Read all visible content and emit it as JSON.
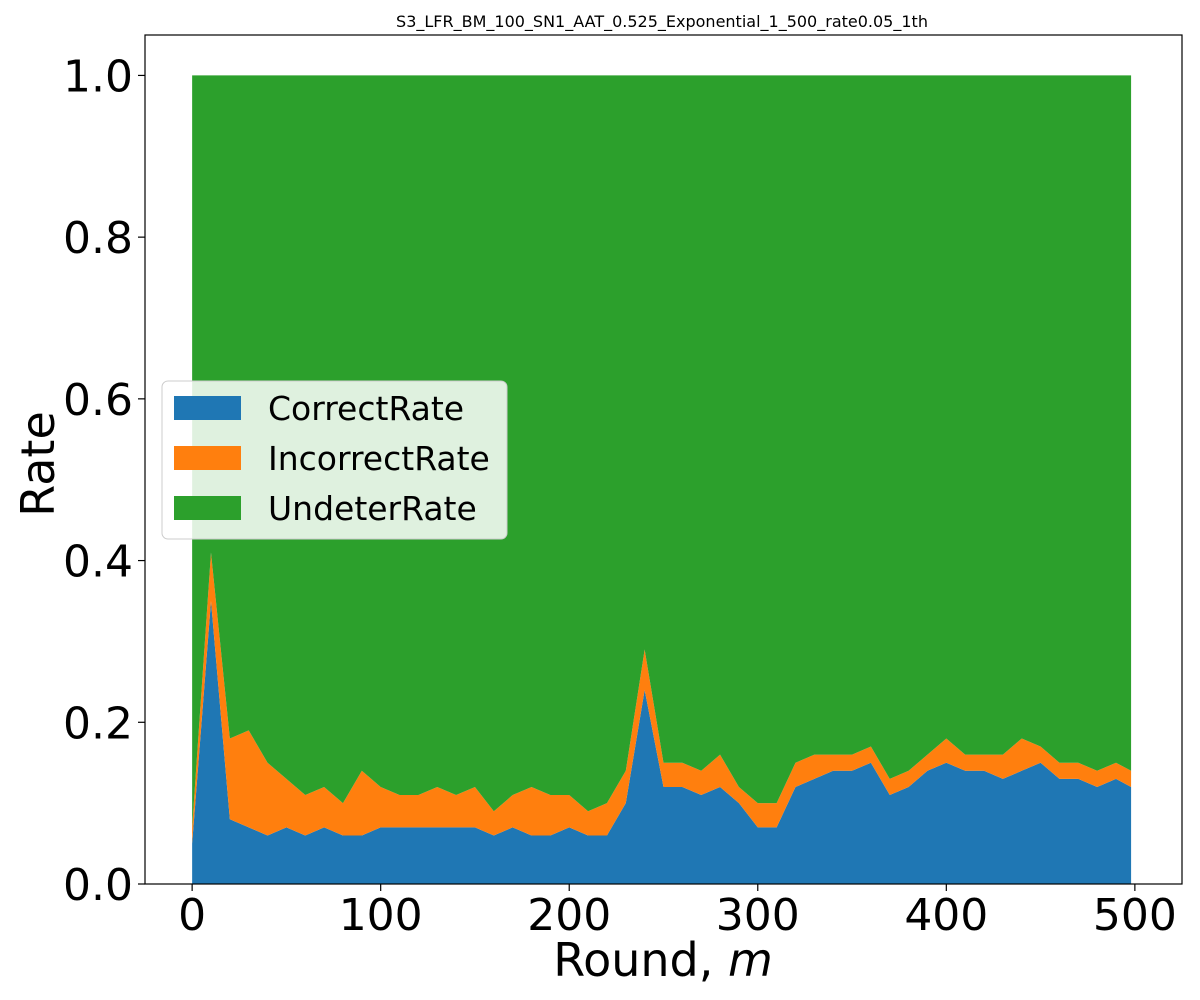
{
  "chart_data": {
    "type": "area",
    "stacked": true,
    "title": "S3_LFR_BM_100_SN1_AAT_0.525_Exponential_1_500_rate0.05_1th",
    "xlabel": "Round, ",
    "xlabel_italic": "m",
    "ylabel": "Rate",
    "xlim": [
      -25,
      525
    ],
    "ylim": [
      0.0,
      1.05
    ],
    "xticks": [
      0,
      100,
      200,
      300,
      400,
      500
    ],
    "xtick_labels": [
      "0",
      "100",
      "200",
      "300",
      "400",
      "500"
    ],
    "yticks": [
      0.0,
      0.2,
      0.4,
      0.6,
      0.8,
      1.0
    ],
    "ytick_labels": [
      "0.0",
      "0.2",
      "0.4",
      "0.6",
      "0.8",
      "1.0"
    ],
    "grid": false,
    "legend_position": "center-left",
    "x_start": 0,
    "x_step": 10,
    "x_end": 498,
    "series": [
      {
        "name": "CorrectRate",
        "color": "#1f77b4",
        "values": [
          0.05,
          0.35,
          0.08,
          0.07,
          0.06,
          0.07,
          0.06,
          0.07,
          0.06,
          0.06,
          0.07,
          0.07,
          0.07,
          0.07,
          0.07,
          0.07,
          0.06,
          0.07,
          0.06,
          0.06,
          0.07,
          0.06,
          0.06,
          0.1,
          0.24,
          0.12,
          0.12,
          0.11,
          0.12,
          0.1,
          0.07,
          0.07,
          0.12,
          0.13,
          0.14,
          0.14,
          0.15,
          0.11,
          0.12,
          0.14,
          0.15,
          0.14,
          0.14,
          0.13,
          0.14,
          0.15,
          0.13,
          0.13,
          0.12,
          0.13,
          0.12
        ]
      },
      {
        "name": "IncorrectRate",
        "color": "#ff7f0e",
        "values": [
          0.02,
          0.06,
          0.1,
          0.12,
          0.09,
          0.06,
          0.05,
          0.05,
          0.04,
          0.08,
          0.05,
          0.04,
          0.04,
          0.05,
          0.04,
          0.05,
          0.03,
          0.04,
          0.06,
          0.05,
          0.04,
          0.03,
          0.04,
          0.04,
          0.05,
          0.03,
          0.03,
          0.03,
          0.04,
          0.02,
          0.03,
          0.03,
          0.03,
          0.03,
          0.02,
          0.02,
          0.02,
          0.02,
          0.02,
          0.02,
          0.03,
          0.02,
          0.02,
          0.03,
          0.04,
          0.02,
          0.02,
          0.02,
          0.02,
          0.02,
          0.02
        ]
      },
      {
        "name": "UndeterRate",
        "color": "#2ca02c",
        "values": [
          0.93,
          0.59,
          0.82,
          0.81,
          0.85,
          0.87,
          0.89,
          0.88,
          0.9,
          0.86,
          0.88,
          0.89,
          0.89,
          0.88,
          0.89,
          0.88,
          0.91,
          0.89,
          0.88,
          0.89,
          0.89,
          0.91,
          0.9,
          0.86,
          0.71,
          0.85,
          0.85,
          0.86,
          0.84,
          0.88,
          0.9,
          0.9,
          0.85,
          0.84,
          0.84,
          0.84,
          0.83,
          0.87,
          0.86,
          0.84,
          0.82,
          0.84,
          0.84,
          0.84,
          0.82,
          0.83,
          0.85,
          0.85,
          0.86,
          0.85,
          0.86
        ]
      }
    ]
  }
}
